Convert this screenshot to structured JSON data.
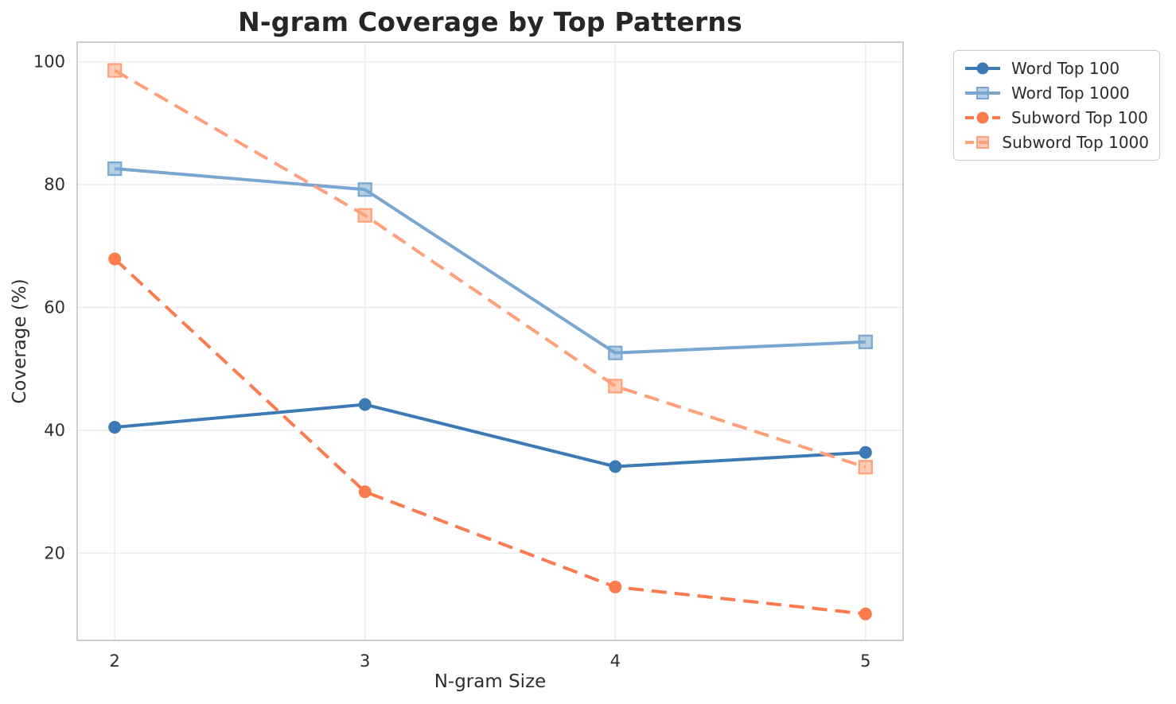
{
  "chart_data": {
    "type": "line",
    "title": "N-gram Coverage by Top Patterns",
    "xlabel": "N-gram Size",
    "ylabel": "Coverage (%)",
    "x": [
      2,
      3,
      4,
      5
    ],
    "xtick_labels": [
      "2",
      "3",
      "4",
      "5"
    ],
    "yticks": [
      20,
      40,
      60,
      80,
      100
    ],
    "ytick_labels": [
      "20",
      "40",
      "60",
      "80",
      "100"
    ],
    "xlim": [
      1.85,
      5.15
    ],
    "ylim": [
      5.8,
      103.2
    ],
    "grid": true,
    "legend_position": "outside-upper-right",
    "colors": {
      "grid": "#ebebeb",
      "spine": "#c9c9c9",
      "text": "#2e2e2e"
    },
    "series": [
      {
        "name": "Word Top 100",
        "values": [
          40.5,
          44.2,
          34.1,
          36.4
        ],
        "color": "#3d7ab4",
        "line_style": "solid",
        "marker": "circle"
      },
      {
        "name": "Word Top 1000",
        "values": [
          82.6,
          79.2,
          52.6,
          54.4
        ],
        "color": "#79a7d1",
        "line_style": "solid",
        "marker": "square"
      },
      {
        "name": "Subword Top 100",
        "values": [
          67.9,
          30.0,
          14.5,
          10.1
        ],
        "color": "#fb7b4e",
        "line_style": "dashed",
        "marker": "circle"
      },
      {
        "name": "Subword Top 1000",
        "values": [
          98.6,
          75.0,
          47.2,
          34.0
        ],
        "color": "#ffa07a",
        "line_style": "dashed",
        "marker": "square"
      }
    ]
  }
}
